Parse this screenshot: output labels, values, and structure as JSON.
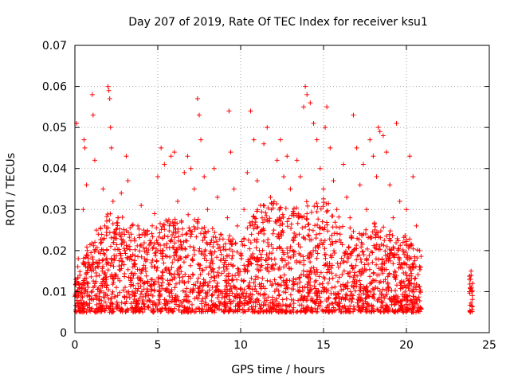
{
  "chart_data": {
    "type": "scatter",
    "title": "Day 207 of 2019, Rate Of TEC Index for receiver ksu1",
    "xlabel": "GPS time / hours",
    "ylabel": "ROTI / TECUs",
    "xlim": [
      0,
      25
    ],
    "ylim": [
      0,
      0.07
    ],
    "xticks": [
      "0",
      "5",
      "10",
      "15",
      "20",
      "25"
    ],
    "yticks": [
      "0",
      "0.01",
      "0.02",
      "0.03",
      "0.04",
      "0.05",
      "0.06",
      "0.07"
    ],
    "grid": true,
    "marker": "plus",
    "color": "#ff0000",
    "series": [
      {
        "points": [
          [
            0.05,
            0.013
          ],
          [
            0.1,
            0.051
          ],
          [
            0.15,
            0.01
          ],
          [
            0.2,
            0.018
          ],
          [
            0.3,
            0.014
          ],
          [
            0.4,
            0.011
          ],
          [
            0.5,
            0.03
          ],
          [
            0.55,
            0.047
          ],
          [
            0.6,
            0.045
          ],
          [
            0.7,
            0.036
          ],
          [
            0.75,
            0.02
          ],
          [
            0.8,
            0.012
          ],
          [
            0.9,
            0.008
          ],
          [
            1.0,
            0.015
          ],
          [
            1.05,
            0.058
          ],
          [
            1.1,
            0.053
          ],
          [
            1.2,
            0.042
          ],
          [
            1.3,
            0.025
          ],
          [
            1.4,
            0.016
          ],
          [
            1.5,
            0.01
          ],
          [
            1.6,
            0.022
          ],
          [
            1.7,
            0.035
          ],
          [
            1.8,
            0.019
          ],
          [
            1.9,
            0.013
          ],
          [
            2.0,
            0.06
          ],
          [
            2.05,
            0.059
          ],
          [
            2.1,
            0.057
          ],
          [
            2.15,
            0.05
          ],
          [
            2.2,
            0.045
          ],
          [
            2.3,
            0.032
          ],
          [
            2.4,
            0.018
          ],
          [
            2.5,
            0.011
          ],
          [
            2.6,
            0.028
          ],
          [
            2.8,
            0.034
          ],
          [
            3.0,
            0.02
          ],
          [
            3.1,
            0.043
          ],
          [
            3.2,
            0.037
          ],
          [
            3.4,
            0.024
          ],
          [
            3.5,
            0.016
          ],
          [
            3.6,
            0.009
          ],
          [
            3.8,
            0.026
          ],
          [
            4.0,
            0.031
          ],
          [
            4.2,
            0.018
          ],
          [
            4.4,
            0.012
          ],
          [
            4.6,
            0.022
          ],
          [
            4.8,
            0.029
          ],
          [
            5.0,
            0.038
          ],
          [
            5.2,
            0.045
          ],
          [
            5.4,
            0.041
          ],
          [
            5.6,
            0.027
          ],
          [
            5.8,
            0.043
          ],
          [
            6.0,
            0.044
          ],
          [
            6.2,
            0.032
          ],
          [
            6.4,
            0.018
          ],
          [
            6.6,
            0.039
          ],
          [
            6.8,
            0.043
          ],
          [
            7.0,
            0.04
          ],
          [
            7.2,
            0.035
          ],
          [
            7.4,
            0.057
          ],
          [
            7.5,
            0.053
          ],
          [
            7.6,
            0.047
          ],
          [
            7.8,
            0.038
          ],
          [
            8.0,
            0.03
          ],
          [
            8.2,
            0.022
          ],
          [
            8.4,
            0.04
          ],
          [
            8.6,
            0.033
          ],
          [
            8.8,
            0.024
          ],
          [
            9.0,
            0.015
          ],
          [
            9.2,
            0.028
          ],
          [
            9.3,
            0.054
          ],
          [
            9.4,
            0.044
          ],
          [
            9.6,
            0.035
          ],
          [
            9.8,
            0.026
          ],
          [
            10.0,
            0.019
          ],
          [
            10.2,
            0.03
          ],
          [
            10.4,
            0.039
          ],
          [
            10.6,
            0.054
          ],
          [
            10.8,
            0.047
          ],
          [
            11.0,
            0.037
          ],
          [
            11.2,
            0.031
          ],
          [
            11.4,
            0.046
          ],
          [
            11.6,
            0.05
          ],
          [
            11.8,
            0.033
          ],
          [
            12.0,
            0.025
          ],
          [
            12.2,
            0.042
          ],
          [
            12.4,
            0.047
          ],
          [
            12.6,
            0.038
          ],
          [
            12.8,
            0.043
          ],
          [
            13.0,
            0.035
          ],
          [
            13.2,
            0.029
          ],
          [
            13.4,
            0.042
          ],
          [
            13.6,
            0.038
          ],
          [
            13.8,
            0.055
          ],
          [
            13.9,
            0.06
          ],
          [
            14.0,
            0.058
          ],
          [
            14.2,
            0.056
          ],
          [
            14.4,
            0.051
          ],
          [
            14.6,
            0.047
          ],
          [
            14.8,
            0.04
          ],
          [
            15.0,
            0.035
          ],
          [
            15.1,
            0.05
          ],
          [
            15.2,
            0.055
          ],
          [
            15.4,
            0.045
          ],
          [
            15.6,
            0.037
          ],
          [
            15.8,
            0.03
          ],
          [
            16.0,
            0.024
          ],
          [
            16.2,
            0.041
          ],
          [
            16.4,
            0.033
          ],
          [
            16.6,
            0.028
          ],
          [
            16.8,
            0.053
          ],
          [
            17.0,
            0.045
          ],
          [
            17.2,
            0.036
          ],
          [
            17.4,
            0.041
          ],
          [
            17.6,
            0.03
          ],
          [
            17.8,
            0.047
          ],
          [
            18.0,
            0.043
          ],
          [
            18.2,
            0.038
          ],
          [
            18.3,
            0.05
          ],
          [
            18.4,
            0.049
          ],
          [
            18.6,
            0.048
          ],
          [
            18.8,
            0.044
          ],
          [
            19.0,
            0.036
          ],
          [
            19.2,
            0.028
          ],
          [
            19.4,
            0.051
          ],
          [
            19.6,
            0.032
          ],
          [
            19.8,
            0.022
          ],
          [
            20.0,
            0.03
          ],
          [
            20.2,
            0.043
          ],
          [
            20.4,
            0.038
          ],
          [
            20.6,
            0.026
          ],
          [
            20.8,
            0.02
          ],
          [
            23.8,
            0.013
          ],
          [
            23.85,
            0.011
          ],
          [
            23.9,
            0.015
          ],
          [
            23.95,
            0.01
          ],
          [
            24.0,
            0.012
          ]
        ]
      }
    ],
    "density_band": {
      "x_ranges": [
        [
          0.0,
          20.9
        ],
        [
          23.8,
          24.0
        ]
      ],
      "y_base": 0.005,
      "y_top_fn": "envelope",
      "envelope": [
        [
          0,
          0.018
        ],
        [
          1,
          0.022
        ],
        [
          2,
          0.03
        ],
        [
          3,
          0.028
        ],
        [
          4,
          0.025
        ],
        [
          5,
          0.027
        ],
        [
          6,
          0.028
        ],
        [
          7,
          0.03
        ],
        [
          8,
          0.026
        ],
        [
          9,
          0.024
        ],
        [
          10,
          0.023
        ],
        [
          11,
          0.03
        ],
        [
          12,
          0.033
        ],
        [
          13,
          0.03
        ],
        [
          14,
          0.032
        ],
        [
          15,
          0.033
        ],
        [
          16,
          0.028
        ],
        [
          17,
          0.024
        ],
        [
          18,
          0.027
        ],
        [
          19,
          0.025
        ],
        [
          20,
          0.024
        ],
        [
          20.9,
          0.02
        ],
        [
          23.8,
          0.014
        ],
        [
          24.0,
          0.014
        ]
      ]
    }
  }
}
